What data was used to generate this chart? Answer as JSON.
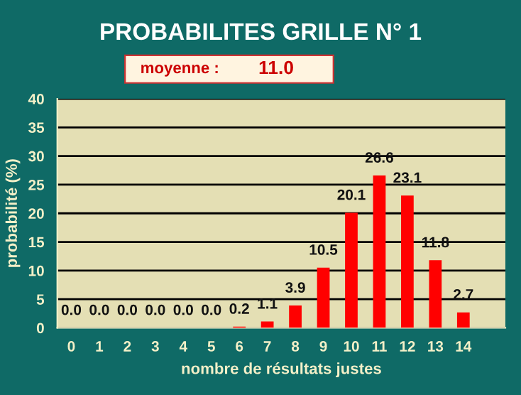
{
  "chart_data": {
    "type": "bar",
    "title": "PROBABILITES GRILLE N° 1",
    "annotations": [
      "moyenne :",
      "11.0"
    ],
    "xlabel": "nombre de résultats justes",
    "ylabel": "probabilité (%)",
    "categories": [
      "0",
      "1",
      "2",
      "3",
      "4",
      "5",
      "6",
      "7",
      "8",
      "9",
      "10",
      "11",
      "12",
      "13",
      "14",
      null
    ],
    "values": [
      0.0,
      0.0,
      0.0,
      0.0,
      0.0,
      0.0,
      0.2,
      1.1,
      3.9,
      10.5,
      20.1,
      26.6,
      23.1,
      11.8,
      2.7,
      null
    ],
    "color": "#ff0000",
    "value_labels": [
      "0.0",
      "0.0",
      "0.0",
      "0.0",
      "0.0",
      "0.0",
      "0.2",
      "1.1",
      "3.9",
      "10.5",
      "20.1",
      "26.6",
      "23.1",
      "11.8",
      "2.7",
      null
    ],
    "ylim": [
      0,
      40
    ],
    "yticks": [
      0,
      5,
      10,
      15,
      20,
      25,
      30,
      35,
      40
    ],
    "grid": "y",
    "legend": false
  }
}
